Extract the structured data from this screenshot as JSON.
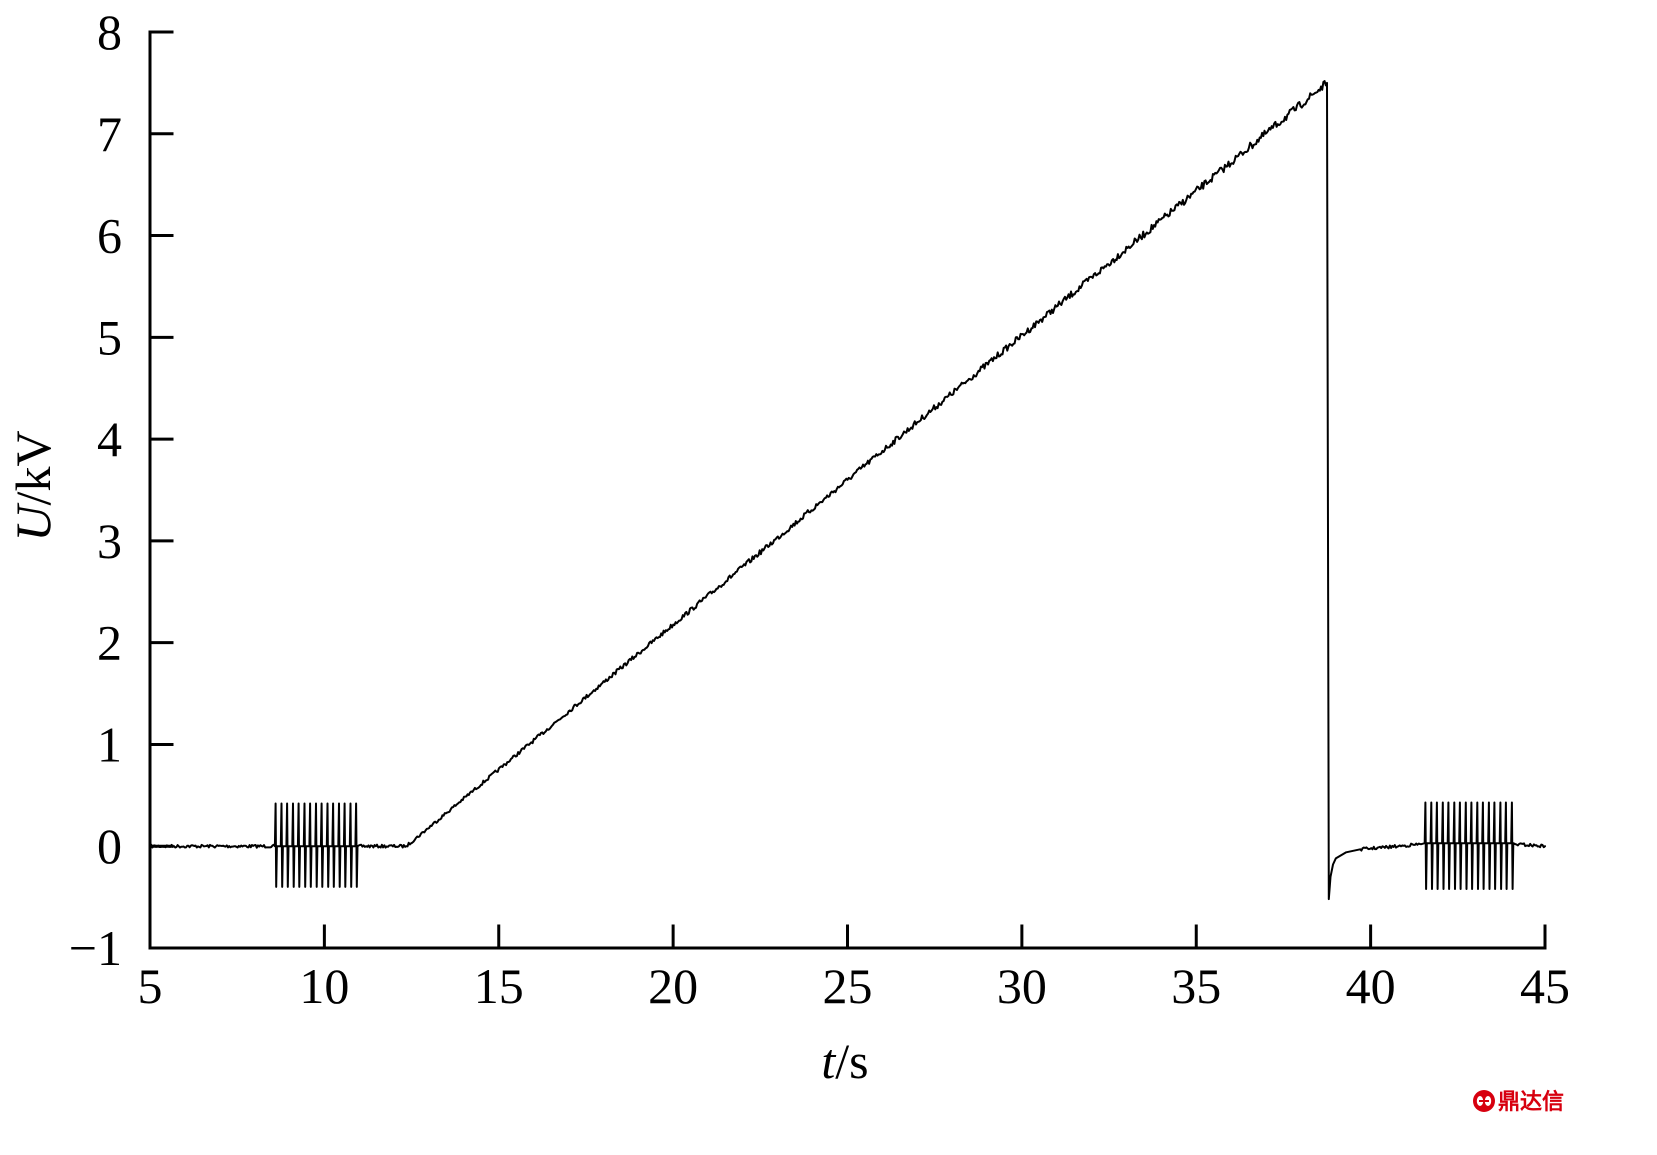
{
  "chart_data": {
    "type": "line",
    "xlabel": "t/s",
    "ylabel": "U/kV",
    "xlim": [
      5,
      45
    ],
    "ylim": [
      -1,
      8
    ],
    "xticks": [
      5,
      10,
      15,
      20,
      25,
      30,
      35,
      40,
      45
    ],
    "xtick_labels": [
      "5",
      "10",
      "15",
      "20",
      "25",
      "30",
      "35",
      "40",
      "45"
    ],
    "yticks": [
      8,
      7,
      6,
      5,
      4,
      3,
      2,
      1,
      0,
      -1
    ],
    "ytick_labels": [
      "8",
      "7",
      "6",
      "5",
      "4",
      "3",
      "2",
      "1",
      "0",
      "−1"
    ],
    "grid": false,
    "legend": "none",
    "series": [
      {
        "points": [
          [
            5.0,
            0.0
          ],
          [
            8.58,
            0.0
          ],
          [
            8.6,
            0.42
          ],
          [
            8.62,
            -0.4
          ],
          [
            8.64,
            0.0
          ],
          [
            8.75,
            0.0
          ],
          [
            8.77,
            0.42
          ],
          [
            8.79,
            -0.4
          ],
          [
            8.81,
            0.0
          ],
          [
            8.91,
            0.0
          ],
          [
            8.93,
            0.42
          ],
          [
            8.95,
            -0.4
          ],
          [
            8.97,
            0.0
          ],
          [
            9.08,
            0.0
          ],
          [
            9.1,
            0.42
          ],
          [
            9.12,
            -0.4
          ],
          [
            9.14,
            0.0
          ],
          [
            9.24,
            0.0
          ],
          [
            9.26,
            0.42
          ],
          [
            9.28,
            -0.4
          ],
          [
            9.3,
            0.0
          ],
          [
            9.41,
            0.0
          ],
          [
            9.43,
            0.42
          ],
          [
            9.45,
            -0.4
          ],
          [
            9.47,
            0.0
          ],
          [
            9.57,
            0.0
          ],
          [
            9.59,
            0.42
          ],
          [
            9.61,
            -0.4
          ],
          [
            9.63,
            0.0
          ],
          [
            9.74,
            0.0
          ],
          [
            9.76,
            0.42
          ],
          [
            9.78,
            -0.4
          ],
          [
            9.8,
            0.0
          ],
          [
            9.9,
            0.0
          ],
          [
            9.92,
            0.42
          ],
          [
            9.94,
            -0.4
          ],
          [
            9.96,
            0.0
          ],
          [
            10.07,
            0.0
          ],
          [
            10.09,
            0.42
          ],
          [
            10.11,
            -0.4
          ],
          [
            10.13,
            0.0
          ],
          [
            10.23,
            0.0
          ],
          [
            10.25,
            0.42
          ],
          [
            10.27,
            -0.4
          ],
          [
            10.29,
            0.0
          ],
          [
            10.4,
            0.0
          ],
          [
            10.42,
            0.42
          ],
          [
            10.44,
            -0.4
          ],
          [
            10.46,
            0.0
          ],
          [
            10.56,
            0.0
          ],
          [
            10.58,
            0.42
          ],
          [
            10.6,
            -0.4
          ],
          [
            10.62,
            0.0
          ],
          [
            10.73,
            0.0
          ],
          [
            10.75,
            0.42
          ],
          [
            10.77,
            -0.4
          ],
          [
            10.79,
            0.0
          ],
          [
            10.89,
            0.0
          ],
          [
            10.91,
            0.42
          ],
          [
            10.93,
            -0.4
          ],
          [
            10.95,
            0.0
          ],
          [
            12.35,
            0.0
          ],
          [
            25.0,
            3.6
          ],
          [
            38.75,
            7.5
          ],
          [
            38.8,
            -0.52
          ],
          [
            38.85,
            -0.3
          ],
          [
            38.92,
            -0.18
          ],
          [
            39.0,
            -0.12
          ],
          [
            39.3,
            -0.06
          ],
          [
            39.7,
            -0.03
          ],
          [
            40.8,
            0.0
          ],
          [
            41.45,
            0.02
          ],
          [
            41.55,
            0.03
          ],
          [
            41.57,
            0.43
          ],
          [
            41.59,
            -0.42
          ],
          [
            41.61,
            0.03
          ],
          [
            41.72,
            0.03
          ],
          [
            41.74,
            0.43
          ],
          [
            41.76,
            -0.42
          ],
          [
            41.78,
            0.03
          ],
          [
            41.88,
            0.03
          ],
          [
            41.9,
            0.43
          ],
          [
            41.92,
            -0.42
          ],
          [
            41.94,
            0.03
          ],
          [
            42.05,
            0.03
          ],
          [
            42.07,
            0.43
          ],
          [
            42.09,
            -0.42
          ],
          [
            42.11,
            0.03
          ],
          [
            42.21,
            0.03
          ],
          [
            42.23,
            0.43
          ],
          [
            42.25,
            -0.42
          ],
          [
            42.27,
            0.03
          ],
          [
            42.38,
            0.03
          ],
          [
            42.4,
            0.43
          ],
          [
            42.42,
            -0.42
          ],
          [
            42.44,
            0.03
          ],
          [
            42.54,
            0.03
          ],
          [
            42.56,
            0.43
          ],
          [
            42.58,
            -0.42
          ],
          [
            42.6,
            0.03
          ],
          [
            42.71,
            0.03
          ],
          [
            42.73,
            0.43
          ],
          [
            42.75,
            -0.42
          ],
          [
            42.77,
            0.03
          ],
          [
            42.87,
            0.03
          ],
          [
            42.89,
            0.43
          ],
          [
            42.91,
            -0.42
          ],
          [
            42.93,
            0.03
          ],
          [
            43.04,
            0.03
          ],
          [
            43.06,
            0.43
          ],
          [
            43.08,
            -0.42
          ],
          [
            43.1,
            0.03
          ],
          [
            43.2,
            0.03
          ],
          [
            43.22,
            0.43
          ],
          [
            43.24,
            -0.42
          ],
          [
            43.26,
            0.03
          ],
          [
            43.37,
            0.03
          ],
          [
            43.39,
            0.43
          ],
          [
            43.41,
            -0.42
          ],
          [
            43.43,
            0.03
          ],
          [
            43.53,
            0.03
          ],
          [
            43.55,
            0.43
          ],
          [
            43.57,
            -0.42
          ],
          [
            43.59,
            0.03
          ],
          [
            43.7,
            0.03
          ],
          [
            43.72,
            0.43
          ],
          [
            43.74,
            -0.42
          ],
          [
            43.76,
            0.03
          ],
          [
            43.86,
            0.03
          ],
          [
            43.88,
            0.43
          ],
          [
            43.9,
            -0.42
          ],
          [
            43.92,
            0.03
          ],
          [
            44.03,
            0.03
          ],
          [
            44.05,
            0.43
          ],
          [
            44.07,
            -0.42
          ],
          [
            44.09,
            0.03
          ],
          [
            44.15,
            0.02
          ],
          [
            45.0,
            0.0
          ]
        ]
      }
    ]
  },
  "colors": {
    "line": "#000000",
    "axis": "#000000"
  },
  "watermark": {
    "text": "鼎达信",
    "color": "#d7000f",
    "icon": "watermark-logo-icon"
  }
}
